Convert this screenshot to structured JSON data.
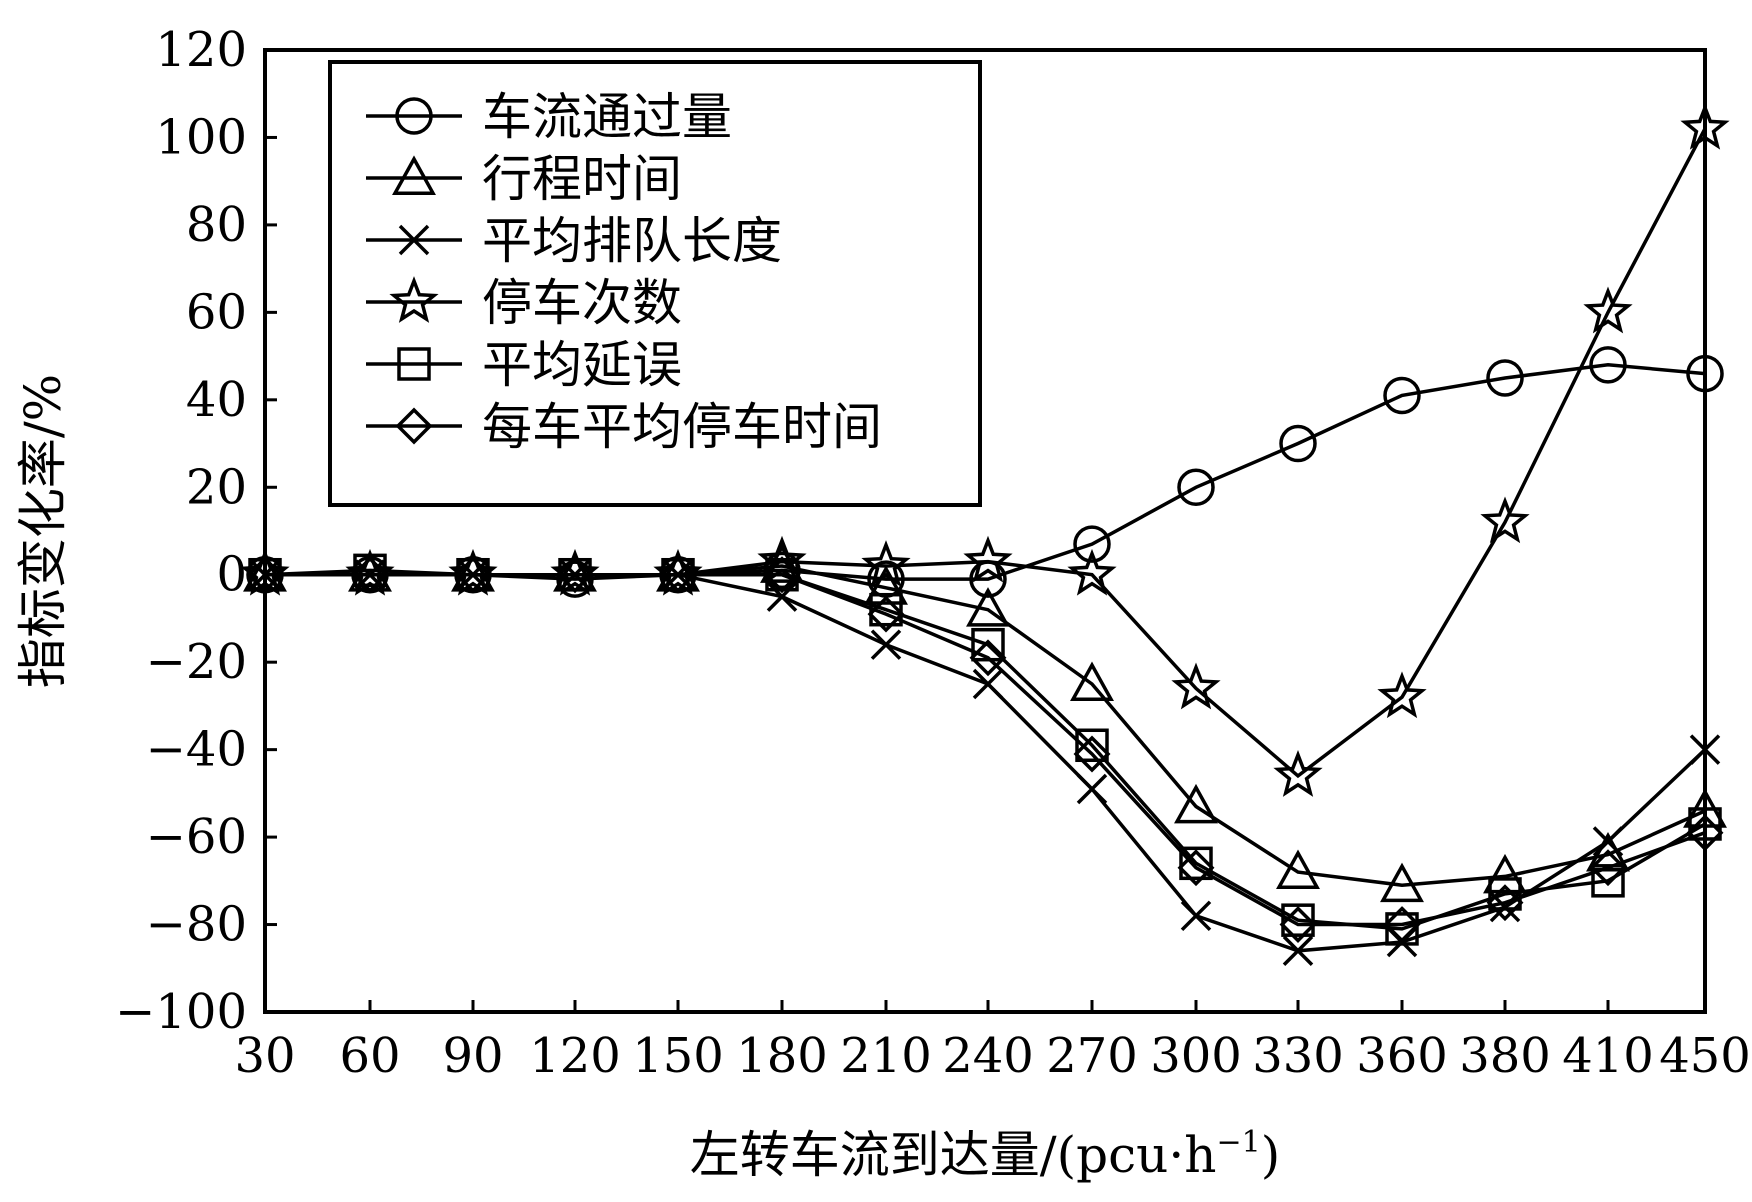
{
  "chart_data": {
    "type": "line",
    "xlabel": "左转车流到达量/(pcu·h",
    "xlabel_sup": "−1",
    "xlabel_close": ")",
    "ylabel": "指标变化率/%",
    "ylim": [
      -100,
      120
    ],
    "yticks": [
      -100,
      -80,
      -60,
      -40,
      -20,
      0,
      20,
      40,
      60,
      80,
      100,
      120
    ],
    "ytick_labels": [
      "−100",
      "−80",
      "−60",
      "−40",
      "−20",
      "0",
      "20",
      "40",
      "60",
      "80",
      "100",
      "120"
    ],
    "categories": [
      "30",
      "60",
      "90",
      "120",
      "150",
      "180",
      "210",
      "240",
      "270",
      "300",
      "330",
      "360",
      "380",
      "410",
      "450"
    ],
    "grid": false,
    "legend_position": "top-left",
    "series": [
      {
        "name": "车流通过量",
        "marker": "circle",
        "values": [
          0,
          0,
          0,
          -1,
          0,
          1,
          -1,
          -1,
          7,
          20,
          30,
          41,
          45,
          48,
          46
        ]
      },
      {
        "name": "行程时间",
        "marker": "triangle",
        "values": [
          0,
          0,
          0,
          0,
          0,
          2,
          -3,
          -8,
          -25,
          -53,
          -68,
          -71,
          -69,
          -64,
          -54
        ]
      },
      {
        "name": "平均排队长度",
        "marker": "x",
        "values": [
          0,
          0,
          0,
          0,
          0,
          -5,
          -16,
          -25,
          -49,
          -78,
          -86,
          -84,
          -76,
          -61,
          -40
        ]
      },
      {
        "name": "停车次数",
        "marker": "star",
        "values": [
          0,
          0,
          0,
          0,
          0,
          3,
          2,
          3,
          0,
          -26,
          -46,
          -28,
          12,
          60,
          102
        ]
      },
      {
        "name": "平均延误",
        "marker": "square",
        "values": [
          0,
          1,
          0,
          0,
          0,
          0,
          -8,
          -16,
          -39,
          -66,
          -79,
          -81,
          -73,
          -70,
          -57
        ]
      },
      {
        "name": "每车平均停车时间",
        "marker": "diamond",
        "values": [
          0,
          0,
          0,
          0,
          0,
          0,
          -9,
          -19,
          -41,
          -67,
          -80,
          -80,
          -75,
          -67,
          -59
        ]
      }
    ]
  }
}
